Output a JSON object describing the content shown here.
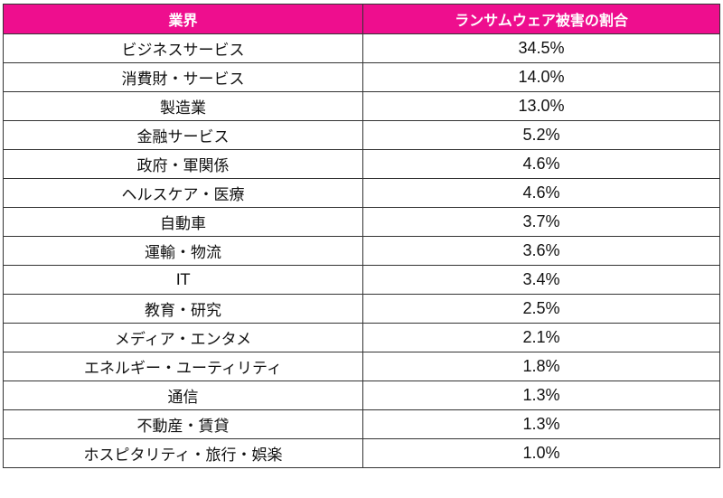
{
  "chart_data": {
    "type": "table",
    "columns": [
      "業界",
      "ランサムウェア被害の割合"
    ],
    "rows": [
      {
        "industry": "ビジネスサービス",
        "share": "34.5%"
      },
      {
        "industry": "消費財・サービス",
        "share": "14.0%"
      },
      {
        "industry": "製造業",
        "share": "13.0%"
      },
      {
        "industry": "金融サービス",
        "share": "5.2%"
      },
      {
        "industry": "政府・軍関係",
        "share": "4.6%"
      },
      {
        "industry": "ヘルスケア・医療",
        "share": "4.6%"
      },
      {
        "industry": "自動車",
        "share": "3.7%"
      },
      {
        "industry": "運輸・物流",
        "share": "3.6%"
      },
      {
        "industry": "IT",
        "share": "3.4%"
      },
      {
        "industry": "教育・研究",
        "share": "2.5%"
      },
      {
        "industry": "メディア・エンタメ",
        "share": "2.1%"
      },
      {
        "industry": "エネルギー・ユーティリティ",
        "share": "1.8%"
      },
      {
        "industry": "通信",
        "share": "1.3%"
      },
      {
        "industry": "不動産・賃貸",
        "share": "1.3%"
      },
      {
        "industry": "ホスピタリティ・旅行・娯楽",
        "share": "1.0%"
      }
    ]
  },
  "colors": {
    "header_bg": "#ee0e8e",
    "header_text": "#ffffff",
    "border": "#333333"
  }
}
